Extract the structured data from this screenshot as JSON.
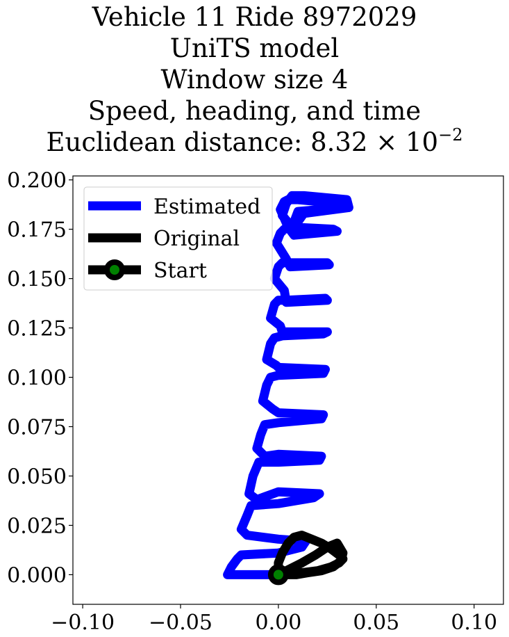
{
  "chart_data": {
    "type": "line",
    "title_lines": [
      "Vehicle 11 Ride 8972029",
      "UniTS model",
      "Window size 4",
      "Speed, heading, and time"
    ],
    "metric_label": "Euclidean distance: ",
    "metric_mantissa": "8.32",
    "metric_times": "×",
    "metric_base": "10",
    "metric_exponent": "−2",
    "xlim": [
      -0.105,
      0.115
    ],
    "ylim": [
      -0.015,
      0.202
    ],
    "xticks": [
      {
        "value": -0.1,
        "label": "−0.10"
      },
      {
        "value": -0.05,
        "label": "−0.05"
      },
      {
        "value": 0.0,
        "label": "0.00"
      },
      {
        "value": 0.05,
        "label": "0.05"
      },
      {
        "value": 0.1,
        "label": "0.10"
      }
    ],
    "yticks": [
      {
        "value": 0.0,
        "label": "0.000"
      },
      {
        "value": 0.025,
        "label": "0.025"
      },
      {
        "value": 0.05,
        "label": "0.050"
      },
      {
        "value": 0.075,
        "label": "0.075"
      },
      {
        "value": 0.1,
        "label": "0.100"
      },
      {
        "value": 0.125,
        "label": "0.125"
      },
      {
        "value": 0.15,
        "label": "0.150"
      },
      {
        "value": 0.175,
        "label": "0.175"
      },
      {
        "value": 0.2,
        "label": "0.200"
      }
    ],
    "grid": false,
    "legend_position": "upper-left",
    "series": [
      {
        "name": "Estimated",
        "color": "#0000ff",
        "x": [
          0.0,
          -0.026,
          -0.024,
          -0.021,
          -0.019,
          0.0,
          0.012,
          0.014,
          0.0,
          -0.016,
          -0.019,
          -0.016,
          -0.014,
          0.0,
          0.018,
          0.021,
          0.0,
          -0.011,
          -0.015,
          -0.013,
          -0.01,
          0.0,
          0.021,
          0.022,
          0.0,
          -0.007,
          -0.011,
          -0.009,
          -0.007,
          0.0,
          0.022,
          0.023,
          0.0,
          -0.003,
          -0.008,
          -0.006,
          -0.004,
          0.0,
          0.023,
          0.024,
          0.0,
          -0.001,
          -0.006,
          -0.004,
          -0.002,
          0.002,
          0.023,
          0.025,
          0.002,
          0.001,
          -0.004,
          -0.002,
          0.0,
          0.004,
          0.024,
          0.025,
          0.004,
          0.003,
          -0.002,
          0.0,
          0.002,
          0.006,
          0.025,
          0.026,
          0.006,
          0.004,
          -0.001,
          0.001,
          0.003,
          0.008,
          0.028,
          0.03,
          0.008,
          0.005,
          0.001,
          0.003,
          0.005,
          0.01,
          0.032,
          0.034,
          0.01,
          0.007,
          0.002,
          0.004,
          0.007,
          0.013,
          0.035,
          0.036,
          0.013,
          0.008
        ],
        "y": [
          0.0,
          0.0,
          0.004,
          0.008,
          0.01,
          0.011,
          0.014,
          0.017,
          0.018,
          0.02,
          0.023,
          0.03,
          0.035,
          0.036,
          0.039,
          0.041,
          0.042,
          0.038,
          0.041,
          0.05,
          0.057,
          0.057,
          0.058,
          0.06,
          0.061,
          0.06,
          0.064,
          0.071,
          0.076,
          0.077,
          0.079,
          0.081,
          0.082,
          0.084,
          0.088,
          0.096,
          0.1,
          0.101,
          0.102,
          0.104,
          0.105,
          0.106,
          0.109,
          0.117,
          0.12,
          0.121,
          0.122,
          0.123,
          0.123,
          0.126,
          0.13,
          0.137,
          0.139,
          0.139,
          0.14,
          0.139,
          0.138,
          0.144,
          0.15,
          0.156,
          0.158,
          0.158,
          0.158,
          0.157,
          0.156,
          0.16,
          0.168,
          0.173,
          0.175,
          0.176,
          0.175,
          0.174,
          0.172,
          0.176,
          0.185,
          0.189,
          0.19,
          0.19,
          0.188,
          0.186,
          0.184,
          0.176,
          0.182,
          0.188,
          0.192,
          0.192,
          0.19,
          0.186,
          0.183,
          0.176
        ]
      },
      {
        "name": "Original",
        "color": "#000000",
        "x": [
          0.0,
          0.005,
          0.012,
          0.02,
          0.027,
          0.031,
          0.033,
          0.031,
          0.027,
          0.022,
          0.017,
          0.012,
          0.008,
          0.005,
          0.002,
          0.0,
          0.0,
          0.002,
          0.006,
          0.012,
          0.019,
          0.025,
          0.03,
          0.033,
          0.032,
          0.028,
          0.022,
          0.015,
          0.009,
          0.004,
          0.001,
          0.0
        ],
        "y": [
          0.0,
          0.0,
          0.001,
          0.002,
          0.004,
          0.006,
          0.008,
          0.01,
          0.013,
          0.016,
          0.018,
          0.02,
          0.019,
          0.016,
          0.011,
          0.006,
          0.002,
          0.001,
          0.003,
          0.006,
          0.01,
          0.014,
          0.016,
          0.011,
          0.007,
          0.004,
          0.002,
          0.001,
          0.0,
          0.0,
          0.0,
          0.0
        ]
      }
    ],
    "start_point": {
      "x": 0.0,
      "y": 0.0,
      "color": "#008000",
      "edgecolor": "#000000"
    },
    "legend": [
      {
        "label": "Estimated",
        "color": "#0000ff",
        "marker": false
      },
      {
        "label": "Original",
        "color": "#000000",
        "marker": false
      },
      {
        "label": "Start",
        "color": "#000000",
        "marker": true,
        "marker_color": "#008000"
      }
    ]
  }
}
